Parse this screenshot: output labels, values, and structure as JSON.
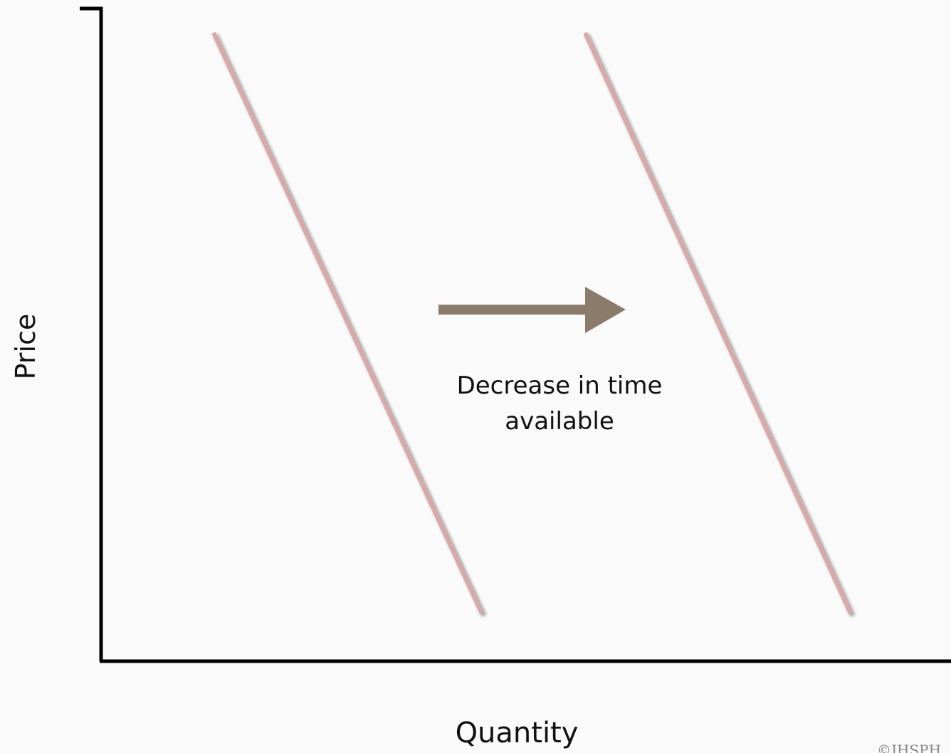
{
  "axes": {
    "x_label": "Quantity",
    "y_label": "Price"
  },
  "curves": [
    {
      "role": "original",
      "color": "#d9a8a8"
    },
    {
      "role": "shifted",
      "color": "#d9a8a8"
    }
  ],
  "shift": {
    "direction": "right",
    "arrow_color": "#8b7b6b",
    "annotation_line1": "Decrease in time",
    "annotation_line2": "available"
  },
  "watermark": "©JHSPH"
}
